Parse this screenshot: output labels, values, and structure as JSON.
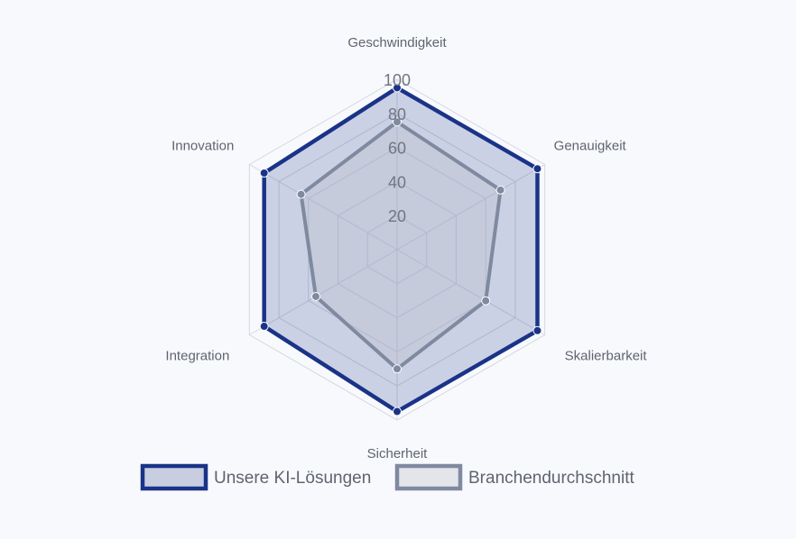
{
  "chart_data": {
    "type": "radar",
    "axes": [
      "Geschwindigkeit",
      "Genauigkeit",
      "Skalierbarkeit",
      "Sicherheit",
      "Integration",
      "Innovation"
    ],
    "r_range": [
      0,
      100
    ],
    "ticks": [
      20,
      40,
      60,
      80,
      100
    ],
    "tick_labels": [
      "20",
      "40",
      "60",
      "80",
      "100"
    ],
    "grid": true,
    "legend_position": "bottom",
    "series": [
      {
        "name": "Unsere KI-Lösungen",
        "values": [
          95,
          95,
          95,
          95,
          90,
          90
        ],
        "stroke_color": "#1a3388",
        "fill_color": "#1a3388"
      },
      {
        "name": "Branchendurchschnitt",
        "values": [
          75,
          70,
          60,
          70,
          55,
          65
        ],
        "stroke_color": "#7f8aa0",
        "fill_color": "#b9bfcc"
      }
    ]
  }
}
